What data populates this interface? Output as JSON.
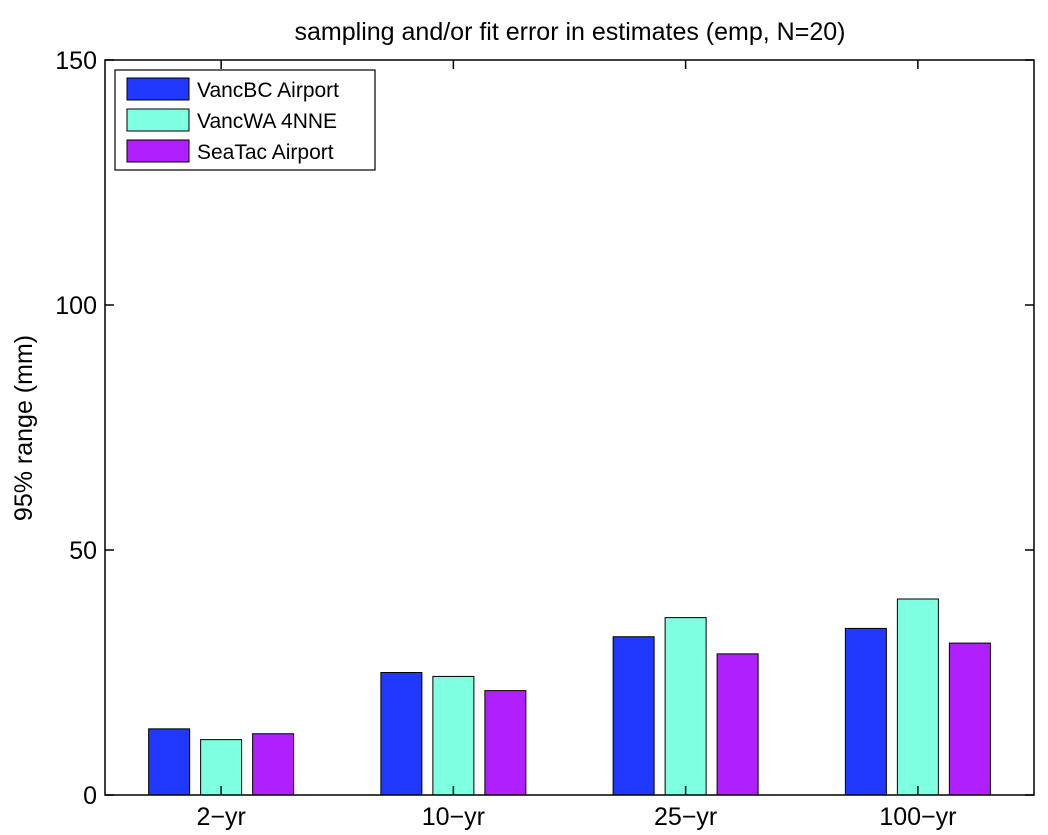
{
  "chart_data": {
    "type": "bar",
    "title": "sampling and/or fit error in estimates (emp, N=20)",
    "xlabel": "",
    "ylabel": "95% range (mm)",
    "ylim": [
      0,
      150
    ],
    "yticks": [
      0,
      50,
      100,
      150
    ],
    "grid": false,
    "legend_position": "top-left",
    "categories": [
      "2−yr",
      "10−yr",
      "25−yr",
      "100−yr"
    ],
    "series": [
      {
        "name": "VancBC Airport",
        "color": "#2038ff",
        "values": [
          13.5,
          25,
          32.3,
          34
        ]
      },
      {
        "name": "VancWA 4NNE",
        "color": "#7dffe0",
        "values": [
          11.3,
          24.2,
          36.2,
          40
        ]
      },
      {
        "name": "SeaTac Airport",
        "color": "#b020ff",
        "values": [
          12.5,
          21.3,
          28.8,
          31
        ]
      }
    ]
  }
}
